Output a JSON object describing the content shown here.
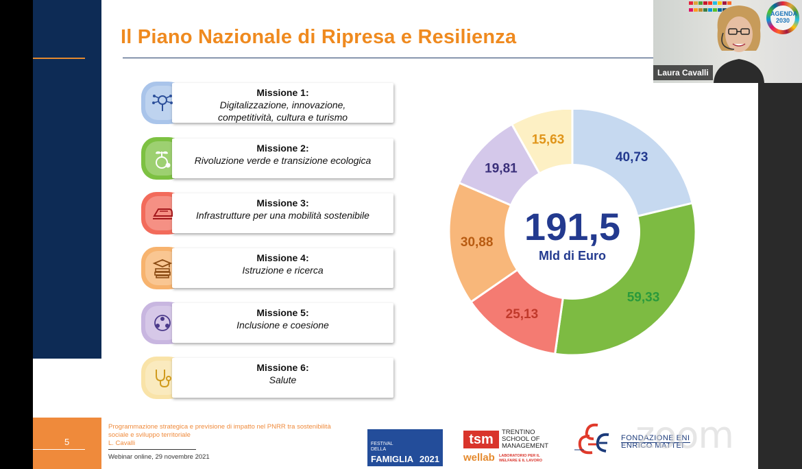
{
  "slide": {
    "title": "Il Piano Nazionale di Ripresa e Resilienza",
    "page_number": "5",
    "missions": [
      {
        "title": "Missione 1",
        "desc1": "Digitalizzazione, innovazione,",
        "desc2": "competitività, cultura e turismo",
        "color": "#a9c4ea",
        "icon": "digital-network-icon"
      },
      {
        "title": "Missione 2",
        "desc1": "Rivoluzione verde e transizione ecologica",
        "desc2": "",
        "color": "#7dc142",
        "icon": "green-plant-icon"
      },
      {
        "title": "Missione 3",
        "desc1": "Infrastrutture per una mobilità sostenibile",
        "desc2": "",
        "color": "#f26b5b",
        "icon": "train-icon"
      },
      {
        "title": "Missione 4",
        "desc1": "Istruzione e ricerca",
        "desc2": "",
        "color": "#f7b36e",
        "icon": "graduation-books-icon"
      },
      {
        "title": "Missione 5",
        "desc1": "Inclusione e coesione",
        "desc2": "",
        "color": "#c8b6e0",
        "icon": "people-circle-icon"
      },
      {
        "title": "Missione 6",
        "desc1": "Salute",
        "desc2": "",
        "color": "#f9e3a8",
        "icon": "stethoscope-icon"
      }
    ],
    "footer": {
      "text_line1": "Programmazione strategica e previsione di impatto nel PNRR tra sostenibilità",
      "text_line2": "sociale e sviluppo territoriale",
      "author": "L. Cavalli",
      "date": "Webinar online, 29 novembre 2021",
      "logos": {
        "festival_line1": "FESTIVAL",
        "festival_line2": "DELLA",
        "festival_word": "FAMIGLIA",
        "festival_year": "2021",
        "tsm_box": "tsm",
        "tsm_l1": "TRENTINO",
        "tsm_l2": "SCHOOL OF",
        "tsm_l3": "MANAGEMENT",
        "wellab": "wellab",
        "wellab_sub1": "LABORATORIO PER IL",
        "wellab_sub2": "WELFARE E IL LAVORO",
        "fem_l1": "FONDAZIONE ENI",
        "fem_l2": "ENRICO MATTEI"
      }
    }
  },
  "chart_data": {
    "type": "pie",
    "variant": "donut",
    "center_total": "191,5",
    "center_unit": "Mld di Euro",
    "slices": [
      {
        "label": "40,73",
        "value": 40.73,
        "color": "#c6d9f0",
        "label_color": "#233a8f"
      },
      {
        "label": "59,33",
        "value": 59.33,
        "color": "#7dbb42",
        "label_color": "#2a9a3c"
      },
      {
        "label": "25,13",
        "value": 25.13,
        "color": "#f47b72",
        "label_color": "#c0392b"
      },
      {
        "label": "30,88",
        "value": 30.88,
        "color": "#f8b77a",
        "label_color": "#b85c12"
      },
      {
        "label": "19,81",
        "value": 19.81,
        "color": "#d4c8ea",
        "label_color": "#3a2f7a"
      },
      {
        "label": "15,63",
        "value": 15.63,
        "color": "#fdf0c4",
        "label_color": "#e0951a"
      }
    ]
  },
  "zoom": {
    "watermark": "zoom",
    "participant_name": "Laura Cavalli",
    "agenda_label": "AGENDA 2030"
  }
}
